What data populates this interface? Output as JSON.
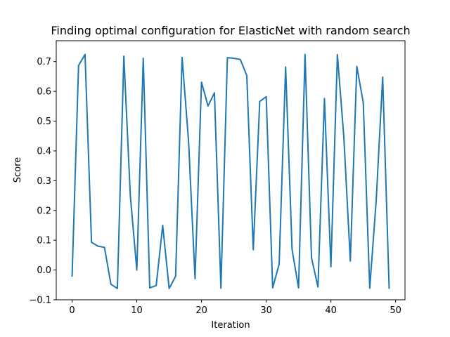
{
  "chart_data": {
    "type": "line",
    "title": "Finding optimal configuration for ElasticNet with random search",
    "xlabel": "Iteration",
    "ylabel": "Score",
    "xlim": [
      -2.45,
      51.45
    ],
    "ylim": [
      -0.1,
      0.77
    ],
    "xticks": [
      0,
      10,
      20,
      30,
      40,
      50
    ],
    "xtick_labels": [
      "0",
      "10",
      "20",
      "30",
      "40",
      "50"
    ],
    "yticks": [
      -0.1,
      0.0,
      0.1,
      0.2,
      0.3,
      0.4,
      0.5,
      0.6,
      0.7
    ],
    "ytick_labels": [
      "−0.1",
      "0.0",
      "0.1",
      "0.2",
      "0.3",
      "0.4",
      "0.5",
      "0.6",
      "0.7"
    ],
    "grid": false,
    "line_color": "#1f77b4",
    "series": [
      {
        "x": [
          0,
          1,
          2,
          3,
          4,
          5,
          6,
          7,
          8,
          9,
          10,
          11,
          12,
          13,
          14,
          15,
          16,
          17,
          18,
          19,
          20,
          21,
          22,
          23,
          24,
          25,
          26,
          27,
          28,
          29,
          30,
          31,
          32,
          33,
          34,
          35,
          36,
          37,
          38,
          39,
          40,
          41,
          42,
          43,
          44,
          45,
          46,
          47,
          48,
          49
        ],
        "values": [
          -0.02,
          0.687,
          0.724,
          0.093,
          0.08,
          0.076,
          -0.048,
          -0.062,
          0.718,
          0.249,
          0.0,
          0.711,
          -0.06,
          -0.052,
          0.15,
          -0.062,
          -0.021,
          0.714,
          0.432,
          -0.029,
          0.631,
          0.551,
          0.595,
          -0.061,
          0.713,
          0.711,
          0.707,
          0.653,
          0.068,
          0.566,
          0.582,
          -0.06,
          0.02,
          0.682,
          0.068,
          -0.06,
          0.724,
          0.041,
          -0.057,
          0.576,
          0.011,
          0.723,
          0.446,
          0.03,
          0.684,
          0.562,
          -0.061,
          0.234,
          0.648,
          -0.061
        ]
      }
    ]
  }
}
